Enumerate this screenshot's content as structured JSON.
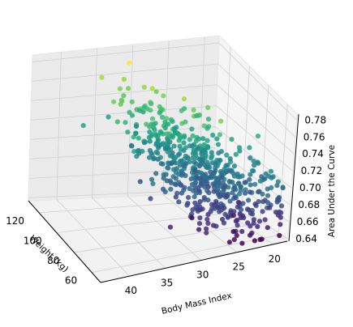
{
  "chart_data": {
    "type": "scatter",
    "dims": "3d",
    "title": "",
    "xlabel": "Body Mass Index",
    "ylabel": "Weight (kg)",
    "zlabel": "Area Under the Curve",
    "xlim": [
      18,
      44
    ],
    "ylim": [
      50,
      132
    ],
    "zlim": [
      0.637,
      0.787
    ],
    "x_ticks": [
      "20",
      "25",
      "30",
      "35",
      "40"
    ],
    "y_ticks": [
      "60",
      "80",
      "100",
      "120"
    ],
    "z_ticks": [
      "0.64",
      "0.66",
      "0.68",
      "0.70",
      "0.72",
      "0.74",
      "0.76",
      "0.78"
    ],
    "colormap": "viridis",
    "color_by": "z",
    "grid": true,
    "legend": "none",
    "n_points": 600,
    "points_note": "approximately 600 points; BMI mostly 20-33, weight 55-125 kg, AUC 0.64-0.78 increasing with weight"
  }
}
